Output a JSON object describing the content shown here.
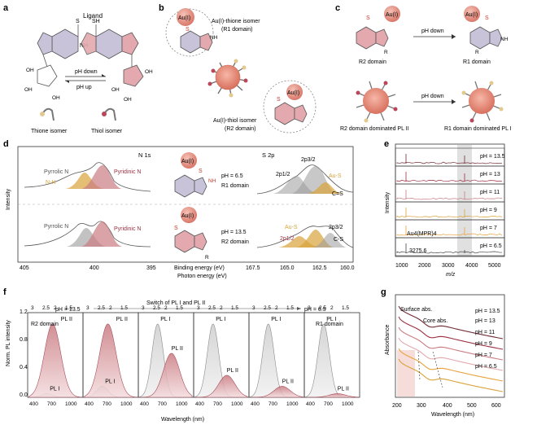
{
  "colors": {
    "pink": "#c97c82",
    "pinkfill": "#e7b9bc",
    "dark": "#6e2a33",
    "gold": "#d9a23a",
    "gray": "#9a9a9a",
    "purple": "#c9a8d6",
    "red": "#c0392b",
    "orange": "#e8a23d"
  },
  "panel_a": {
    "letter": "a",
    "title": "Ligand",
    "S": "S",
    "SH": "SH",
    "NH": "NH",
    "N": "N",
    "OH": "OH",
    "arrow_down": "pH down",
    "arrow_up": "pH up",
    "thione": "Thione isomer",
    "thiol": "Thiol isomer"
  },
  "panel_b": {
    "letter": "b",
    "au": "Au(I)",
    "thione_label": "Au(I)-thione isomer",
    "thione_domain": "(R1 domain)",
    "thiol_label": "Au(I)-thiol isomer",
    "thiol_domain": "(R2 domain)",
    "S": "S",
    "NH": "NH"
  },
  "panel_c": {
    "letter": "c",
    "au": "Au(I)",
    "arrow": "pH down",
    "r2": "R2 domain",
    "r1": "R1 domain",
    "r2pl": "R2 domain dominated PL II",
    "r1pl": "R1 domain dominated PL I",
    "S": "S",
    "R": "R",
    "NH": "NH"
  },
  "panel_d": {
    "letter": "d",
    "ylabel": "Intensity",
    "n1s": "N 1s",
    "s2p": "S 2p",
    "xlabel1": "Binding energy (eV)",
    "xlabel2": "Photon energy (eV)",
    "n_ticks": [
      "405",
      "400",
      "395"
    ],
    "s_ticks": [
      "167.5",
      "165.0",
      "162.5",
      "160.0"
    ],
    "top": {
      "pyrrolic": "Pyrrolic N",
      "nh": "N-H",
      "pyridinic": "Pyridinic N",
      "ph": "pH = 6.5",
      "domain": "R1 domain",
      "p12": "2p1/2",
      "p32": "2p3/2",
      "aus": "Au-S",
      "cs": "C=S"
    },
    "bottom": {
      "pyrrolic": "Pyrrolic N",
      "pyridinic": "Pyridinic N",
      "ph": "pH = 13.5",
      "domain": "R2 domain",
      "p12": "2p1/2",
      "p32": "2p3/2",
      "aus": "Au-S",
      "cs": "C-S"
    },
    "au": "Au(I)",
    "S": "S",
    "NH": "NH",
    "R": "R"
  },
  "panel_e": {
    "letter": "e",
    "ylabel": "Intensity",
    "xlabel": "m/z",
    "ticks": [
      "1000",
      "2000",
      "3000",
      "4000",
      "5000"
    ],
    "ph": [
      "pH = 13.5",
      "pH = 13",
      "pH = 11",
      "pH = 9",
      "pH = 7",
      "pH = 6.5"
    ],
    "cluster": "Au4(MPR)4",
    "peak": "3275.6"
  },
  "panel_f": {
    "letter": "f",
    "ylabel": "Norm. PL intensity",
    "xlabel": "Wavelength (nm)",
    "ph_left": "pH = 13.5",
    "ph_right": "pH = 6.5",
    "switch": "Switch of PL I and PL II",
    "r2": "R2 domain",
    "r1": "R1 domain",
    "pl1": "PL I",
    "pl2": "PL II",
    "yticks": [
      "0.0",
      "0.4",
      "0.8",
      "1.2"
    ],
    "xticks": [
      "400",
      "700",
      "1000"
    ],
    "top_ticks": [
      "3",
      "2.5",
      "2",
      "1.5"
    ]
  },
  "panel_g": {
    "letter": "g",
    "ylabel": "Absorbance",
    "xlabel": "Wavelength (nm)",
    "surface": "Surface abs.",
    "core": "Core abs.",
    "ph": [
      "pH = 13.5",
      "pH = 13",
      "pH = 11",
      "pH = 9",
      "pH = 7",
      "pH = 6.5"
    ],
    "ticks": [
      "200",
      "300",
      "400",
      "500",
      "600"
    ]
  }
}
